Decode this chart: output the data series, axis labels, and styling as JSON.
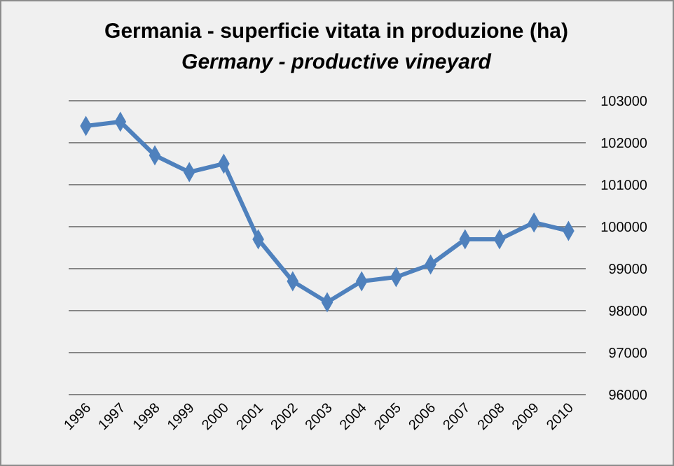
{
  "chart_data": {
    "type": "line",
    "title": "Germania - superficie vitata in produzione (ha)",
    "subtitle": "Germany - productive vineyard",
    "categories": [
      "1996",
      "1997",
      "1998",
      "1999",
      "2000",
      "2001",
      "2002",
      "2003",
      "2004",
      "2005",
      "2006",
      "2007",
      "2008",
      "2009",
      "2010"
    ],
    "series": [
      {
        "color": "#4f81bd",
        "values": [
          102400,
          102500,
          101700,
          101300,
          101500,
          99700,
          98700,
          98200,
          98700,
          98800,
          99100,
          99700,
          99700,
          100100,
          99900
        ]
      }
    ],
    "ylim": [
      96000,
      103000
    ],
    "yticks": [
      96000,
      97000,
      98000,
      99000,
      100000,
      101000,
      102000,
      103000
    ],
    "grid": "y",
    "marker": "diamond",
    "line_style": "solid"
  }
}
